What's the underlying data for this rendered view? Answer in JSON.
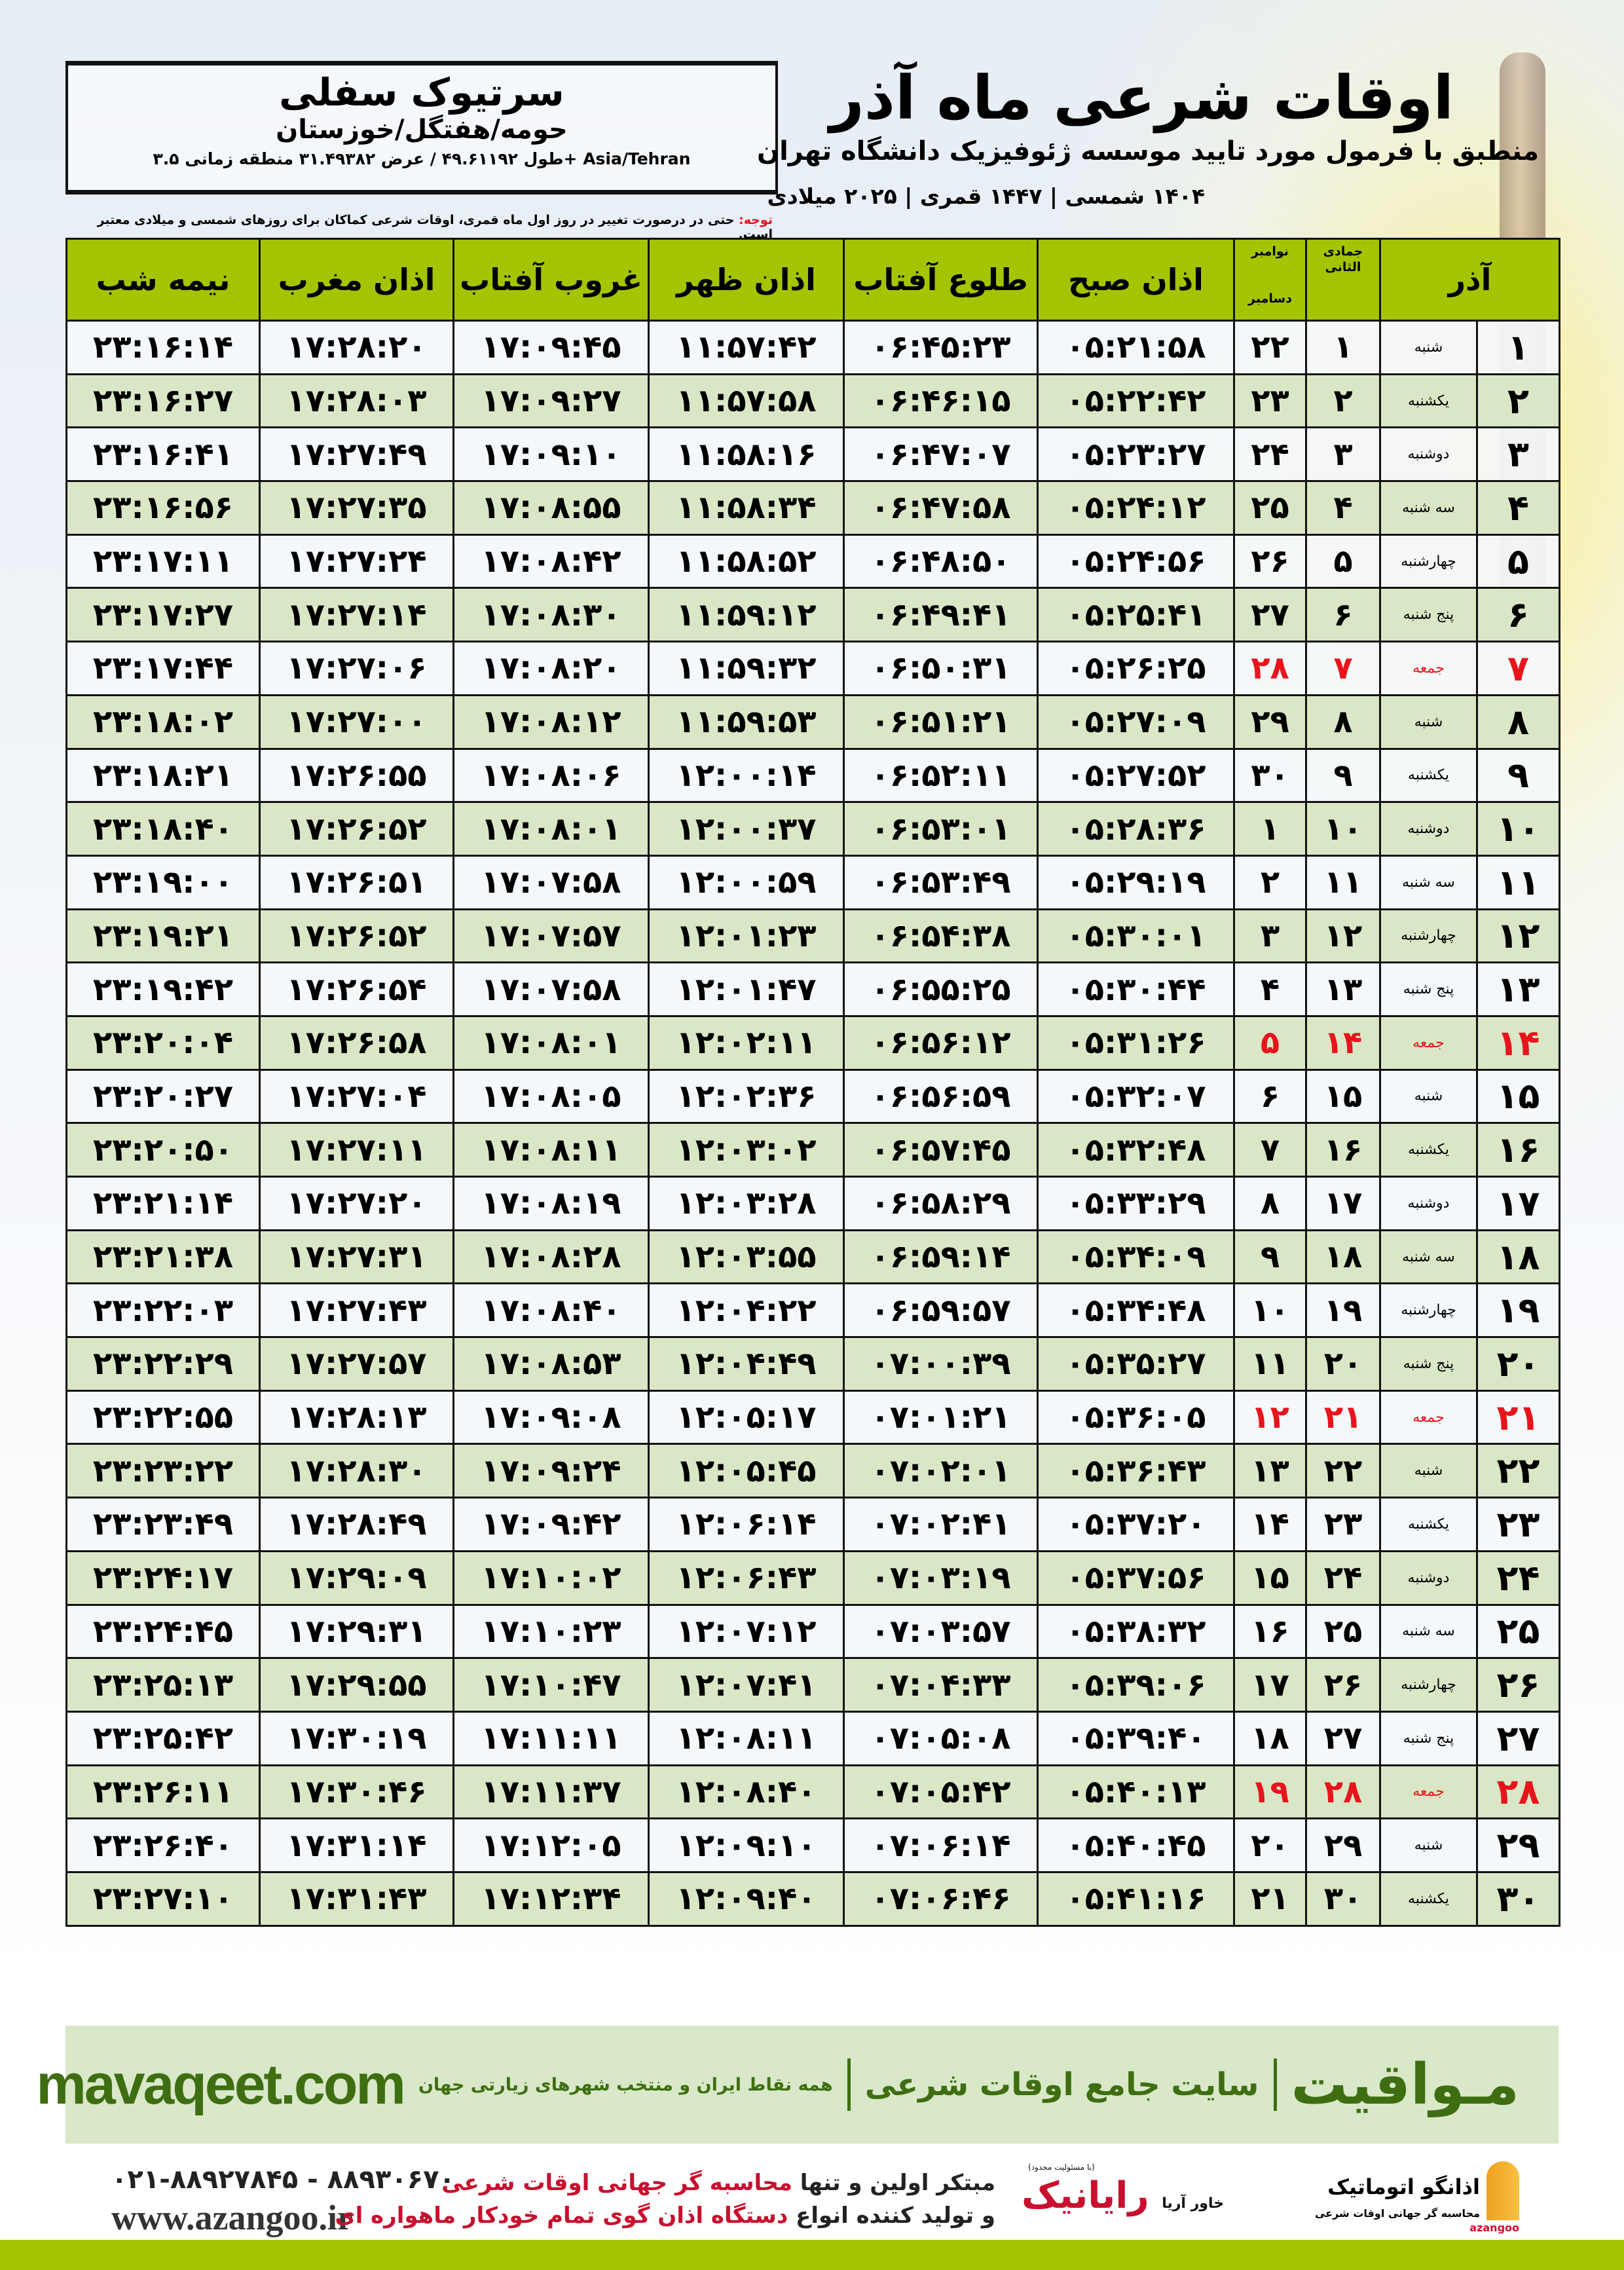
{
  "location": {
    "city": "سرتیوک سفلی",
    "region": "حومه/هفتگل/خوزستان",
    "coords": "طول ۴۹.۶۱۱۹۲ / عرض ۳۱.۴۹۳۸۲ منطقه زمانی ۳.۵+ Asia/Tehran"
  },
  "header": {
    "title": "اوقات شرعی ماه آذر",
    "subtitle": "منطبق با فرمول مورد تایید موسسه ژئوفیزیک دانشگاه تهران",
    "dates": "۱۴۰۴ شمسی | ۱۴۴۷ قمری | ۲۰۲۵ میلادی"
  },
  "note": {
    "label": "توجه:",
    "text": " حتی در درصورت تغییر در روز اول ماه قمری، اوقات شرعی کماکان برای روزهای شمسی و میلادی معتبر است."
  },
  "columns": {
    "month": "آذر",
    "hijri_month": "جمادی الثانی",
    "miladi_month_1": "نوامبر",
    "miladi_month_2": "دسامبر",
    "sobh": "اذان صبح",
    "tolu": "طلوع آفتاب",
    "zohr": "اذان ظهر",
    "ghorub": "غروب آفتاب",
    "maghrib": "اذان مغرب",
    "nimeshab": "نیمه شب"
  },
  "colors": {
    "header_green": "#a5c400",
    "row_green": "#d9e7c6",
    "friday_red": "#e8141c",
    "brand_green": "#3f6e12"
  },
  "rows": [
    [
      "۱",
      "شنبه",
      "۱",
      "۲۲",
      "۰۵:۲۱:۵۸",
      "۰۶:۴۵:۲۳",
      "۱۱:۵۷:۴۲",
      "۱۷:۰۹:۴۵",
      "۱۷:۲۸:۲۰",
      "۲۳:۱۶:۱۴"
    ],
    [
      "۲",
      "یکشنبه",
      "۲",
      "۲۳",
      "۰۵:۲۲:۴۲",
      "۰۶:۴۶:۱۵",
      "۱۱:۵۷:۵۸",
      "۱۷:۰۹:۲۷",
      "۱۷:۲۸:۰۳",
      "۲۳:۱۶:۲۷"
    ],
    [
      "۳",
      "دوشنبه",
      "۳",
      "۲۴",
      "۰۵:۲۳:۲۷",
      "۰۶:۴۷:۰۷",
      "۱۱:۵۸:۱۶",
      "۱۷:۰۹:۱۰",
      "۱۷:۲۷:۴۹",
      "۲۳:۱۶:۴۱"
    ],
    [
      "۴",
      "سه شنبه",
      "۴",
      "۲۵",
      "۰۵:۲۴:۱۲",
      "۰۶:۴۷:۵۸",
      "۱۱:۵۸:۳۴",
      "۱۷:۰۸:۵۵",
      "۱۷:۲۷:۳۵",
      "۲۳:۱۶:۵۶"
    ],
    [
      "۵",
      "چهارشنبه",
      "۵",
      "۲۶",
      "۰۵:۲۴:۵۶",
      "۰۶:۴۸:۵۰",
      "۱۱:۵۸:۵۲",
      "۱۷:۰۸:۴۲",
      "۱۷:۲۷:۲۴",
      "۲۳:۱۷:۱۱"
    ],
    [
      "۶",
      "پنج شنبه",
      "۶",
      "۲۷",
      "۰۵:۲۵:۴۱",
      "۰۶:۴۹:۴۱",
      "۱۱:۵۹:۱۲",
      "۱۷:۰۸:۳۰",
      "۱۷:۲۷:۱۴",
      "۲۳:۱۷:۲۷"
    ],
    [
      "۷",
      "جمعه",
      "۷",
      "۲۸",
      "۰۵:۲۶:۲۵",
      "۰۶:۵۰:۳۱",
      "۱۱:۵۹:۳۲",
      "۱۷:۰۸:۲۰",
      "۱۷:۲۷:۰۶",
      "۲۳:۱۷:۴۴"
    ],
    [
      "۸",
      "شنبه",
      "۸",
      "۲۹",
      "۰۵:۲۷:۰۹",
      "۰۶:۵۱:۲۱",
      "۱۱:۵۹:۵۳",
      "۱۷:۰۸:۱۲",
      "۱۷:۲۷:۰۰",
      "۲۳:۱۸:۰۲"
    ],
    [
      "۹",
      "یکشنبه",
      "۹",
      "۳۰",
      "۰۵:۲۷:۵۲",
      "۰۶:۵۲:۱۱",
      "۱۲:۰۰:۱۴",
      "۱۷:۰۸:۰۶",
      "۱۷:۲۶:۵۵",
      "۲۳:۱۸:۲۱"
    ],
    [
      "۱۰",
      "دوشنبه",
      "۱۰",
      "۱",
      "۰۵:۲۸:۳۶",
      "۰۶:۵۳:۰۱",
      "۱۲:۰۰:۳۷",
      "۱۷:۰۸:۰۱",
      "۱۷:۲۶:۵۲",
      "۲۳:۱۸:۴۰"
    ],
    [
      "۱۱",
      "سه شنبه",
      "۱۱",
      "۲",
      "۰۵:۲۹:۱۹",
      "۰۶:۵۳:۴۹",
      "۱۲:۰۰:۵۹",
      "۱۷:۰۷:۵۸",
      "۱۷:۲۶:۵۱",
      "۲۳:۱۹:۰۰"
    ],
    [
      "۱۲",
      "چهارشنبه",
      "۱۲",
      "۳",
      "۰۵:۳۰:۰۱",
      "۰۶:۵۴:۳۸",
      "۱۲:۰۱:۲۳",
      "۱۷:۰۷:۵۷",
      "۱۷:۲۶:۵۲",
      "۲۳:۱۹:۲۱"
    ],
    [
      "۱۳",
      "پنج شنبه",
      "۱۳",
      "۴",
      "۰۵:۳۰:۴۴",
      "۰۶:۵۵:۲۵",
      "۱۲:۰۱:۴۷",
      "۱۷:۰۷:۵۸",
      "۱۷:۲۶:۵۴",
      "۲۳:۱۹:۴۲"
    ],
    [
      "۱۴",
      "جمعه",
      "۱۴",
      "۵",
      "۰۵:۳۱:۲۶",
      "۰۶:۵۶:۱۲",
      "۱۲:۰۲:۱۱",
      "۱۷:۰۸:۰۱",
      "۱۷:۲۶:۵۸",
      "۲۳:۲۰:۰۴"
    ],
    [
      "۱۵",
      "شنبه",
      "۱۵",
      "۶",
      "۰۵:۳۲:۰۷",
      "۰۶:۵۶:۵۹",
      "۱۲:۰۲:۳۶",
      "۱۷:۰۸:۰۵",
      "۱۷:۲۷:۰۴",
      "۲۳:۲۰:۲۷"
    ],
    [
      "۱۶",
      "یکشنبه",
      "۱۶",
      "۷",
      "۰۵:۳۲:۴۸",
      "۰۶:۵۷:۴۵",
      "۱۲:۰۳:۰۲",
      "۱۷:۰۸:۱۱",
      "۱۷:۲۷:۱۱",
      "۲۳:۲۰:۵۰"
    ],
    [
      "۱۷",
      "دوشنبه",
      "۱۷",
      "۸",
      "۰۵:۳۳:۲۹",
      "۰۶:۵۸:۲۹",
      "۱۲:۰۳:۲۸",
      "۱۷:۰۸:۱۹",
      "۱۷:۲۷:۲۰",
      "۲۳:۲۱:۱۴"
    ],
    [
      "۱۸",
      "سه شنبه",
      "۱۸",
      "۹",
      "۰۵:۳۴:۰۹",
      "۰۶:۵۹:۱۴",
      "۱۲:۰۳:۵۵",
      "۱۷:۰۸:۲۸",
      "۱۷:۲۷:۳۱",
      "۲۳:۲۱:۳۸"
    ],
    [
      "۱۹",
      "چهارشنبه",
      "۱۹",
      "۱۰",
      "۰۵:۳۴:۴۸",
      "۰۶:۵۹:۵۷",
      "۱۲:۰۴:۲۲",
      "۱۷:۰۸:۴۰",
      "۱۷:۲۷:۴۳",
      "۲۳:۲۲:۰۳"
    ],
    [
      "۲۰",
      "پنج شنبه",
      "۲۰",
      "۱۱",
      "۰۵:۳۵:۲۷",
      "۰۷:۰۰:۳۹",
      "۱۲:۰۴:۴۹",
      "۱۷:۰۸:۵۳",
      "۱۷:۲۷:۵۷",
      "۲۳:۲۲:۲۹"
    ],
    [
      "۲۱",
      "جمعه",
      "۲۱",
      "۱۲",
      "۰۵:۳۶:۰۵",
      "۰۷:۰۱:۲۱",
      "۱۲:۰۵:۱۷",
      "۱۷:۰۹:۰۸",
      "۱۷:۲۸:۱۳",
      "۲۳:۲۲:۵۵"
    ],
    [
      "۲۲",
      "شنبه",
      "۲۲",
      "۱۳",
      "۰۵:۳۶:۴۳",
      "۰۷:۰۲:۰۱",
      "۱۲:۰۵:۴۵",
      "۱۷:۰۹:۲۴",
      "۱۷:۲۸:۳۰",
      "۲۳:۲۳:۲۲"
    ],
    [
      "۲۳",
      "یکشنبه",
      "۲۳",
      "۱۴",
      "۰۵:۳۷:۲۰",
      "۰۷:۰۲:۴۱",
      "۱۲:۰۶:۱۴",
      "۱۷:۰۹:۴۲",
      "۱۷:۲۸:۴۹",
      "۲۳:۲۳:۴۹"
    ],
    [
      "۲۴",
      "دوشنبه",
      "۲۴",
      "۱۵",
      "۰۵:۳۷:۵۶",
      "۰۷:۰۳:۱۹",
      "۱۲:۰۶:۴۳",
      "۱۷:۱۰:۰۲",
      "۱۷:۲۹:۰۹",
      "۲۳:۲۴:۱۷"
    ],
    [
      "۲۵",
      "سه شنبه",
      "۲۵",
      "۱۶",
      "۰۵:۳۸:۳۲",
      "۰۷:۰۳:۵۷",
      "۱۲:۰۷:۱۲",
      "۱۷:۱۰:۲۳",
      "۱۷:۲۹:۳۱",
      "۲۳:۲۴:۴۵"
    ],
    [
      "۲۶",
      "چهارشنبه",
      "۲۶",
      "۱۷",
      "۰۵:۳۹:۰۶",
      "۰۷:۰۴:۳۳",
      "۱۲:۰۷:۴۱",
      "۱۷:۱۰:۴۷",
      "۱۷:۲۹:۵۵",
      "۲۳:۲۵:۱۳"
    ],
    [
      "۲۷",
      "پنج شنبه",
      "۲۷",
      "۱۸",
      "۰۵:۳۹:۴۰",
      "۰۷:۰۵:۰۸",
      "۱۲:۰۸:۱۱",
      "۱۷:۱۱:۱۱",
      "۱۷:۳۰:۱۹",
      "۲۳:۲۵:۴۲"
    ],
    [
      "۲۸",
      "جمعه",
      "۲۸",
      "۱۹",
      "۰۵:۴۰:۱۳",
      "۰۷:۰۵:۴۲",
      "۱۲:۰۸:۴۰",
      "۱۷:۱۱:۳۷",
      "۱۷:۳۰:۴۶",
      "۲۳:۲۶:۱۱"
    ],
    [
      "۲۹",
      "شنبه",
      "۲۹",
      "۲۰",
      "۰۵:۴۰:۴۵",
      "۰۷:۰۶:۱۴",
      "۱۲:۰۹:۱۰",
      "۱۷:۱۲:۰۵",
      "۱۷:۳۱:۱۴",
      "۲۳:۲۶:۴۰"
    ],
    [
      "۳۰",
      "یکشنبه",
      "۳۰",
      "۲۱",
      "۰۵:۴۱:۱۶",
      "۰۷:۰۶:۴۶",
      "۱۲:۰۹:۴۰",
      "۱۷:۱۲:۳۴",
      "۱۷:۳۱:۴۳",
      "۲۳:۲۷:۱۰"
    ]
  ],
  "banner": {
    "brand": "مـواقیت",
    "slogan": "سایت جامع اوقات شرعی",
    "sub": "همه نقاط ایران و منتخب شهرهای زیارتی جهان",
    "site": "mavaqeet.com"
  },
  "footer": {
    "phone": "۰۲۱-۸۸۹۲۷۸۴۵ - ۸۸۹۳۰۶۷۰",
    "web": "www.azangoo.ir",
    "promo_1a": "مبتکر اولین و تنها ",
    "promo_1b": "محاسبه گر جهانی اوقات شرعی",
    "promo_2a": "و تولید کننده انواع ",
    "promo_2b": "دستگاه اذان گوی تمام خودکار ماهواره ای",
    "raynik": "رایانیک",
    "raynik_sub": "خاور آریا",
    "raynik_tiny": "(با مسئولیت محدود)",
    "azangoo_name": "اذانگو اتوماتیک",
    "azangoo_tag": "محاسبه گر جهانی اوقات شرعی",
    "azangoo_latin": "azangoo"
  }
}
